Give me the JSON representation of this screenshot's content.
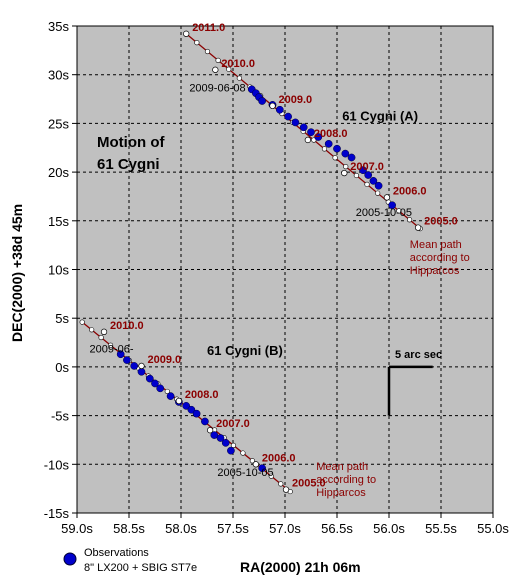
{
  "chart_data": {
    "type": "scatter",
    "title_line1": "Motion of",
    "title_line2": "61 Cygni",
    "xlabel": "RA(2000) 21h 06m",
    "ylabel": "DEC(2000) +38d 45m",
    "xlim": [
      59.0,
      55.0
    ],
    "ylim": [
      -15,
      35
    ],
    "x_ticks": [
      {
        "value": 59.0,
        "label": "59.0s"
      },
      {
        "value": 58.5,
        "label": "58.5s"
      },
      {
        "value": 58.0,
        "label": "58.0s"
      },
      {
        "value": 57.5,
        "label": "57.5s"
      },
      {
        "value": 57.0,
        "label": "57.0s"
      },
      {
        "value": 56.5,
        "label": "56.5s"
      },
      {
        "value": 56.0,
        "label": "56.0s"
      },
      {
        "value": 55.5,
        "label": "55.5s"
      },
      {
        "value": 55.0,
        "label": "55.0s"
      }
    ],
    "y_ticks": [
      {
        "value": 35,
        "label": "35s"
      },
      {
        "value": 30,
        "label": "30s"
      },
      {
        "value": 25,
        "label": "25s"
      },
      {
        "value": 20,
        "label": "20s"
      },
      {
        "value": 15,
        "label": "15s"
      },
      {
        "value": 10,
        "label": "10s"
      },
      {
        "value": 5,
        "label": "5s"
      },
      {
        "value": 0,
        "label": "0s"
      },
      {
        "value": -5,
        "label": "-5s"
      },
      {
        "value": -10,
        "label": "-10s"
      },
      {
        "value": -15,
        "label": "-15s"
      }
    ],
    "grid": true,
    "plot_background": "#c0c0c0",
    "path_color": "#8b0000",
    "observation_color": "#0000cc",
    "year_label_color": "#8b0000",
    "stars": [
      {
        "name": "61 Cygni (A)",
        "label_at": [
          56.45,
          25.3
        ],
        "path_start": [
          57.95,
          34.2
        ],
        "path_end": [
          55.7,
          14.2
        ],
        "year_marks": [
          {
            "value": 2011.0,
            "ra": 57.95,
            "dec": 34.2
          },
          {
            "value": 2010.0,
            "ra": 57.67,
            "dec": 30.5
          },
          {
            "value": 2009.0,
            "ra": 57.12,
            "dec": 26.8
          },
          {
            "value": 2008.0,
            "ra": 56.78,
            "dec": 23.3
          },
          {
            "value": 2007.0,
            "ra": 56.43,
            "dec": 19.9
          },
          {
            "value": 2006.0,
            "ra": 56.02,
            "dec": 17.4
          },
          {
            "value": 2005.0,
            "ra": 55.72,
            "dec": 14.3
          }
        ],
        "date_labels": [
          {
            "text": "2009-06-08",
            "ra": 57.92,
            "dec": 28.3
          },
          {
            "text": "2005-10-05",
            "ra": 56.32,
            "dec": 15.5
          }
        ],
        "note_lines": [
          "Mean path",
          "according to",
          "Hipparcos"
        ],
        "observations": [
          {
            "ra": 57.32,
            "dec": 28.5
          },
          {
            "ra": 57.28,
            "dec": 28.1
          },
          {
            "ra": 57.25,
            "dec": 27.7
          },
          {
            "ra": 57.22,
            "dec": 27.3
          },
          {
            "ra": 57.12,
            "dec": 26.9
          },
          {
            "ra": 57.05,
            "dec": 26.4
          },
          {
            "ra": 56.97,
            "dec": 25.7
          },
          {
            "ra": 56.9,
            "dec": 25.1
          },
          {
            "ra": 56.82,
            "dec": 24.6
          },
          {
            "ra": 56.75,
            "dec": 24.1
          },
          {
            "ra": 56.68,
            "dec": 23.6
          },
          {
            "ra": 56.58,
            "dec": 22.9
          },
          {
            "ra": 56.5,
            "dec": 22.4
          },
          {
            "ra": 56.42,
            "dec": 21.9
          },
          {
            "ra": 56.36,
            "dec": 21.5
          },
          {
            "ra": 56.25,
            "dec": 20.2
          },
          {
            "ra": 56.2,
            "dec": 19.7
          },
          {
            "ra": 56.15,
            "dec": 19.1
          },
          {
            "ra": 56.1,
            "dec": 18.6
          },
          {
            "ra": 55.97,
            "dec": 16.6
          }
        ]
      },
      {
        "name": "61 Cygni (B)",
        "label_at": [
          57.75,
          1.2
        ],
        "path_start": [
          58.95,
          4.6
        ],
        "path_end": [
          56.95,
          -12.8
        ],
        "year_marks": [
          {
            "value": 2010.0,
            "ra": 58.74,
            "dec": 3.6
          },
          {
            "value": 2009.0,
            "ra": 58.38,
            "dec": 0.1
          },
          {
            "value": 2008.0,
            "ra": 58.02,
            "dec": -3.5
          },
          {
            "value": 2007.0,
            "ra": 57.72,
            "dec": -6.5
          },
          {
            "value": 2006.0,
            "ra": 57.28,
            "dec": -10.0
          },
          {
            "value": 2005.0,
            "ra": 56.99,
            "dec": -12.6
          }
        ],
        "date_labels": [
          {
            "text": "2009-06-",
            "ra": 58.88,
            "dec": 1.5
          },
          {
            "text": "2005-10-05",
            "ra": 57.65,
            "dec": -11.2
          }
        ],
        "note_lines": [
          "Mean path",
          "according to",
          "Hipparcos"
        ],
        "observations": [
          {
            "ra": 58.58,
            "dec": 1.3
          },
          {
            "ra": 58.52,
            "dec": 0.7
          },
          {
            "ra": 58.45,
            "dec": 0.1
          },
          {
            "ra": 58.38,
            "dec": -0.5
          },
          {
            "ra": 58.3,
            "dec": -1.2
          },
          {
            "ra": 58.25,
            "dec": -1.7
          },
          {
            "ra": 58.2,
            "dec": -2.2
          },
          {
            "ra": 58.1,
            "dec": -3.0
          },
          {
            "ra": 58.02,
            "dec": -3.6
          },
          {
            "ra": 57.95,
            "dec": -4.0
          },
          {
            "ra": 57.9,
            "dec": -4.4
          },
          {
            "ra": 57.85,
            "dec": -4.8
          },
          {
            "ra": 57.77,
            "dec": -5.6
          },
          {
            "ra": 57.68,
            "dec": -7.0
          },
          {
            "ra": 57.62,
            "dec": -7.3
          },
          {
            "ra": 57.57,
            "dec": -7.8
          },
          {
            "ra": 57.52,
            "dec": -8.6
          },
          {
            "ra": 57.22,
            "dec": -10.4
          }
        ]
      }
    ],
    "scale_bar": {
      "label": "5 arc sec",
      "ra": 56.0,
      "dec_top": 0,
      "dec_bottom": -5,
      "ra_end": 55.58
    },
    "legend": {
      "position": "bottom-left",
      "label": "Observations",
      "sublabel": "8\" LX200 + SBIG ST7e"
    }
  }
}
